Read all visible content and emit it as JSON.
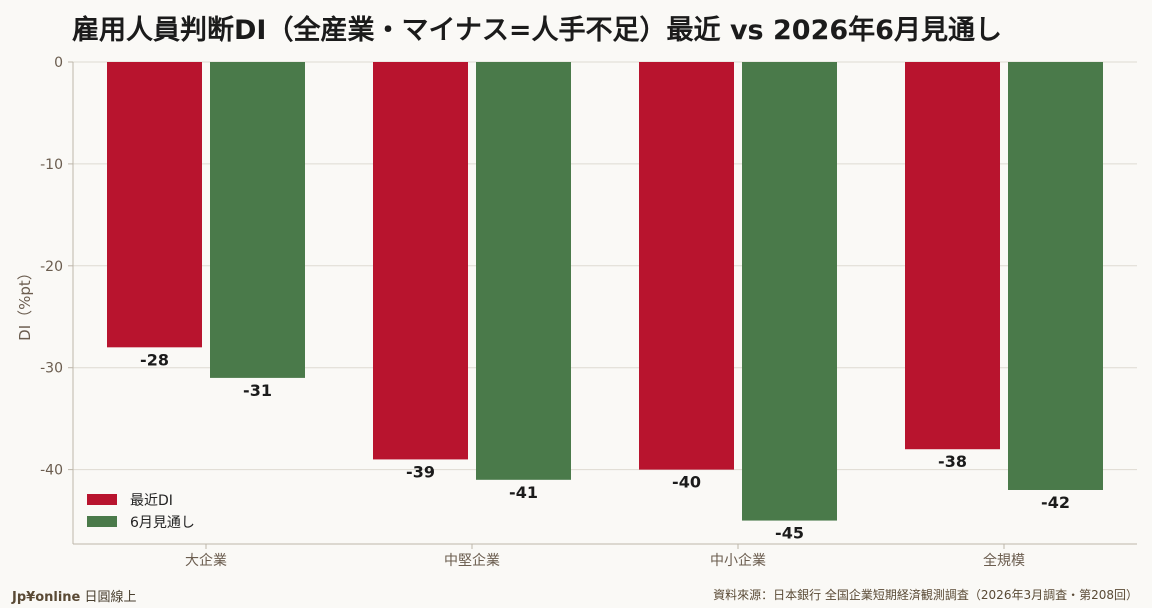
{
  "chart_data": {
    "type": "bar",
    "title": "雇用人員判断DI（全産業・マイナス=人手不足）最近 vs 2026年6月見通し",
    "ylabel": "DI（%pt）",
    "xlabel": "",
    "categories": [
      "大企業",
      "中堅企業",
      "中小企業",
      "全規模"
    ],
    "series": [
      {
        "name": "最近DI",
        "values": [
          -28,
          -39,
          -40,
          -38
        ],
        "color": "#b8142e"
      },
      {
        "name": "6月見通し",
        "values": [
          -31,
          -41,
          -45,
          -42
        ],
        "color": "#4a7a4a"
      }
    ],
    "ylim": [
      -47.3,
      0
    ],
    "yticks": [
      0,
      -10,
      -20,
      -30,
      -40
    ],
    "grid": true,
    "legend_position": "lower-left"
  },
  "footer": {
    "brand_bold": "Jp¥online",
    "brand_rest": " 日圓線上",
    "source": "資料來源：日本銀行 全国企業短期経済観測調査（2026年3月調査・第208回）"
  }
}
